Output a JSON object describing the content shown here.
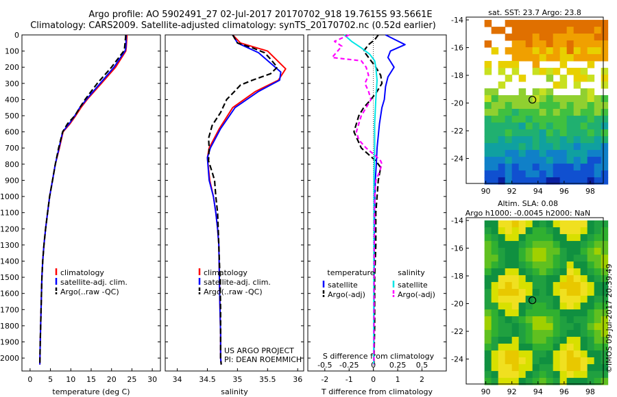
{
  "header": {
    "line1": "Argo profile: AO 5902491_27 02-Jul-2017 20170702_918 19.7615S 93.5661E",
    "line2": "Climatology: CARS2009. Satellite-adjusted climatology: synTS_20170702.nc (0.52d earlier)"
  },
  "colors": {
    "climatology": "#ff0000",
    "satellite": "#0000ff",
    "argo": "#000000",
    "s_satellite": "#00e5e5",
    "s_argo": "#ff00ff"
  },
  "depth_ticks": [
    0,
    100,
    200,
    300,
    400,
    500,
    600,
    700,
    800,
    900,
    1000,
    1100,
    1200,
    1300,
    1400,
    1500,
    1600,
    1700,
    1800,
    1900,
    2000
  ],
  "chart_data": [
    {
      "type": "line",
      "panel": "temperature",
      "xlabel": "temperature (deg C)",
      "xlim": [
        -2,
        32
      ],
      "ylim": [
        2080,
        0
      ],
      "x_ticks": [
        0,
        5,
        10,
        15,
        20,
        25,
        30
      ],
      "legend": [
        "climatology",
        "satellite-adj. clim.",
        "Argo(..raw -QC)"
      ],
      "series": [
        {
          "name": "climatology",
          "x": [
            23.8,
            23.6,
            23.5,
            21,
            17.5,
            14,
            12.5,
            11.2,
            9.8,
            8.1,
            7.2,
            6.2,
            5.5,
            4.8,
            4.3,
            3.8,
            3.4,
            3.1,
            2.9,
            2.7,
            2.5,
            2.4
          ],
          "y": [
            0,
            80,
            100,
            200,
            300,
            400,
            450,
            500,
            550,
            600,
            700,
            800,
            900,
            1000,
            1100,
            1200,
            1300,
            1400,
            1500,
            1700,
            1900,
            2040
          ]
        },
        {
          "name": "satellite-adj. clim.",
          "x": [
            23.6,
            23.5,
            23.3,
            20.6,
            17.2,
            13.8,
            12.2,
            11,
            9.6,
            8,
            7.1,
            6.2,
            5.5,
            4.8,
            4.3,
            3.8,
            3.4,
            3.1,
            2.9,
            2.7,
            2.5,
            2.4
          ],
          "y": [
            0,
            80,
            100,
            200,
            300,
            400,
            450,
            500,
            550,
            600,
            700,
            800,
            900,
            1000,
            1100,
            1200,
            1300,
            1400,
            1500,
            1700,
            1900,
            2040
          ]
        },
        {
          "name": "Argo(..raw -QC)",
          "x": [
            23.5,
            23.2,
            23,
            20,
            16.5,
            13.5,
            12.2,
            11,
            9.2,
            8,
            7,
            6.2,
            5.5,
            4.8,
            4.3,
            3.8,
            3.4,
            3.1,
            2.9,
            2.7,
            2.5,
            2.4
          ],
          "y": [
            0,
            80,
            100,
            200,
            300,
            400,
            450,
            500,
            550,
            600,
            700,
            800,
            900,
            1000,
            1100,
            1200,
            1300,
            1400,
            1500,
            1700,
            1900,
            2040
          ]
        }
      ]
    },
    {
      "type": "line",
      "panel": "salinity",
      "xlabel": "salinity",
      "xlim": [
        33.8,
        36.1
      ],
      "ylim": [
        2080,
        0
      ],
      "x_ticks": [
        34,
        34.5,
        35,
        35.5,
        36
      ],
      "legend": [
        "climatology",
        "satellite-adj. clim.",
        "Argo(..raw -QC)"
      ],
      "annotations": [
        "US ARGO PROJECT",
        "PI: DEAN ROEMMICH"
      ],
      "series": [
        {
          "name": "climatology",
          "x": [
            34.92,
            35.05,
            35.5,
            35.8,
            35.68,
            35.3,
            34.92,
            34.7,
            34.53,
            34.5,
            34.54,
            34.6,
            34.64,
            34.67,
            34.69,
            34.7,
            34.71,
            34.72,
            34.72,
            34.73
          ],
          "y": [
            0,
            50,
            100,
            210,
            280,
            350,
            450,
            580,
            700,
            760,
            900,
            1000,
            1100,
            1200,
            1300,
            1500,
            1700,
            1850,
            2000,
            2040
          ]
        },
        {
          "name": "satellite-adj. clim.",
          "x": [
            34.92,
            35.0,
            35.35,
            35.72,
            35.7,
            35.35,
            34.96,
            34.72,
            34.55,
            34.5,
            34.53,
            34.6,
            34.64,
            34.67,
            34.69,
            34.7,
            34.71,
            34.72,
            34.72,
            34.73
          ],
          "y": [
            0,
            50,
            110,
            230,
            280,
            350,
            450,
            580,
            700,
            760,
            900,
            1000,
            1100,
            1200,
            1300,
            1500,
            1700,
            1850,
            2000,
            2040
          ]
        },
        {
          "name": "Argo(..raw -QC)",
          "x": [
            34.92,
            35.0,
            35.25,
            35.45,
            35.55,
            35.66,
            35.55,
            35.25,
            35.05,
            34.95,
            34.82,
            34.72,
            34.58,
            34.52,
            34.53,
            34.52,
            34.58,
            34.62,
            34.64,
            34.67,
            34.68,
            34.69,
            34.7,
            34.71,
            34.72,
            34.72,
            34.72,
            34.73
          ],
          "y": [
            0,
            50,
            80,
            110,
            150,
            200,
            240,
            280,
            310,
            350,
            400,
            480,
            560,
            640,
            700,
            780,
            850,
            900,
            1000,
            1100,
            1200,
            1300,
            1400,
            1500,
            1700,
            1850,
            2000,
            2040
          ]
        }
      ]
    },
    {
      "type": "line",
      "panel": "difference",
      "xlabel": "T difference from climatology",
      "secondary_xlabel": "S difference from climatology",
      "xlim": [
        -2.7,
        3.0
      ],
      "ylim": [
        2080,
        0
      ],
      "x_ticks": [
        -2,
        -1,
        0,
        1,
        2
      ],
      "secondary_ticks": [
        {
          "label": "-0.5",
          "t": -2
        },
        {
          "label": "-0.25",
          "t": -1
        },
        {
          "label": "0",
          "t": 0
        },
        {
          "label": "0.25",
          "t": 1
        },
        {
          "label": "0.5",
          "t": 2
        }
      ],
      "legend_temperature_title": "temperature",
      "legend_salinity_title": "salinity",
      "legend": [
        "satellite",
        "Argo(-adj)",
        "satellite",
        "Argo(-adj)"
      ],
      "series": [
        {
          "name": "temperature satellite",
          "x": [
            0.5,
            0.9,
            1.3,
            0.7,
            0.6,
            0.85,
            0.6,
            0.5,
            0.45,
            0.35,
            0.25,
            0.15,
            0.12,
            0.08,
            0.06,
            0.04,
            0.03,
            0.02,
            0.02
          ],
          "y": [
            0,
            30,
            60,
            100,
            140,
            200,
            260,
            320,
            400,
            450,
            550,
            700,
            800,
            900,
            1000,
            1200,
            1500,
            1800,
            2040
          ]
        },
        {
          "name": "temperature Argo(-adj)",
          "x": [
            0.2,
            0.05,
            -0.2,
            -0.4,
            -0.15,
            0.1,
            0.3,
            0.35,
            0.15,
            -0.1,
            -0.4,
            -0.6,
            -0.8,
            -0.5,
            -0.2,
            0.1,
            0.3,
            0.2,
            0.15,
            0.1,
            0.1,
            0.05,
            0.05,
            0.02
          ],
          "y": [
            0,
            30,
            60,
            100,
            150,
            200,
            250,
            300,
            350,
            400,
            450,
            500,
            600,
            700,
            740,
            780,
            820,
            900,
            1000,
            1100,
            1300,
            1500,
            1800,
            2040
          ]
        },
        {
          "name": "salinity satellite",
          "x": [
            -1.2,
            -0.9,
            -0.5,
            -0.15,
            0.05,
            0.1,
            0.15,
            0.1,
            0.05,
            0.05,
            0.03,
            0.02,
            0.02,
            0.01,
            0.01
          ],
          "y": [
            0,
            40,
            80,
            120,
            160,
            200,
            280,
            400,
            550,
            700,
            850,
            1000,
            1300,
            1700,
            2040
          ]
        },
        {
          "name": "salinity Argo(-adj)",
          "x": [
            -1.0,
            -1.6,
            -1.3,
            -1.7,
            -0.5,
            -0.3,
            -0.2,
            -0.35,
            -0.2,
            -0.1,
            -0.3,
            -0.5,
            -0.6,
            -0.7,
            -0.6,
            -0.3,
            0.1,
            0.3,
            0.35,
            0.25,
            0.1,
            0.05,
            0.03,
            0.02
          ],
          "y": [
            0,
            40,
            70,
            140,
            160,
            200,
            250,
            300,
            350,
            400,
            450,
            500,
            550,
            600,
            650,
            700,
            750,
            780,
            800,
            850,
            900,
            1000,
            1500,
            2040
          ]
        }
      ]
    },
    {
      "type": "heatmap",
      "panel": "sst_map",
      "title": "sat. SST: 23.7 Argo: 23.8",
      "x_ticks": [
        90,
        92,
        94,
        96,
        98
      ],
      "y_ticks": [
        -14,
        -16,
        -18,
        -20,
        -22,
        -24
      ],
      "xlim": [
        88.5,
        99
      ],
      "ylim": [
        -25.8,
        -13.8
      ],
      "argo_position": [
        93.57,
        -19.76
      ]
    },
    {
      "type": "heatmap",
      "panel": "sla_map",
      "title_line1": "Altim. SLA: 0.08",
      "title_line2": "Argo h1000: -0.0045 h2000: NaN",
      "x_ticks": [
        90,
        92,
        94,
        96,
        98
      ],
      "y_ticks": [
        -14,
        -16,
        -18,
        -20,
        -22,
        -24
      ],
      "xlim": [
        88.5,
        99
      ],
      "ylim": [
        -25.8,
        -13.8
      ],
      "argo_position": [
        93.57,
        -19.76
      ]
    }
  ],
  "footer_stamp": "©IMOS 09-Jul-2017 20:39:49"
}
